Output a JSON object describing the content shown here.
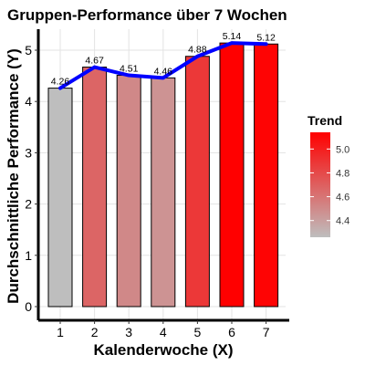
{
  "chart_data": {
    "type": "bar",
    "title": "Gruppen-Performance über 7 Wochen",
    "xlabel": "Kalenderwoche (X)",
    "ylabel": "Durchschnittliche Performance (Y)",
    "categories": [
      "1",
      "2",
      "3",
      "4",
      "5",
      "6",
      "7"
    ],
    "values": [
      4.26,
      4.67,
      4.51,
      4.46,
      4.88,
      5.14,
      5.12
    ],
    "value_labels": [
      "4.26",
      "4.67",
      "4.51",
      "4.46",
      "4.88",
      "5.14",
      "5.12"
    ],
    "ylim": [
      0,
      5.35
    ],
    "yticks": [
      0,
      1,
      2,
      3,
      4,
      5
    ],
    "ytick_labels": [
      "0",
      "1",
      "2",
      "3",
      "4",
      "5"
    ],
    "grid": true,
    "trend_line": {
      "values": [
        4.26,
        4.67,
        4.51,
        4.46,
        4.88,
        5.14,
        5.12
      ],
      "color": "#0000ff"
    },
    "legend": {
      "title": "Trend",
      "placement": "right",
      "type": "colorbar",
      "range": [
        4.26,
        5.14
      ],
      "ticks": [
        4.4,
        4.6,
        4.8,
        5.0
      ],
      "tick_labels": [
        "4.4",
        "4.6",
        "4.8",
        "5.0"
      ],
      "color_low": "#bebebe",
      "color_high": "#ff0000"
    }
  }
}
